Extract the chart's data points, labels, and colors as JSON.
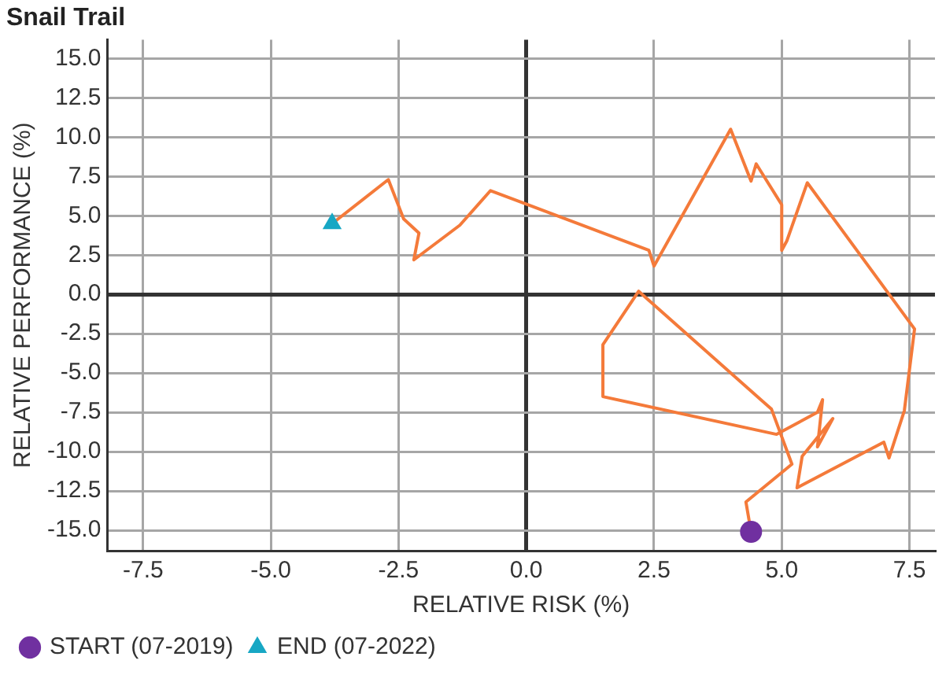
{
  "chart_data": {
    "type": "line",
    "title": "Snail Trail",
    "xlabel": "RELATIVE RISK (%)",
    "ylabel": "RELATIVE PERFORMANCE (%)",
    "xlim": [
      -8.2,
      8.0
    ],
    "ylim": [
      -16.3,
      16.2
    ],
    "xticks": [
      -7.5,
      {
        "value": -5,
        "label": "-5.0"
      },
      -2.5,
      {
        "value": 0,
        "label": "0.0"
      },
      2.5,
      {
        "value": 5,
        "label": "5.0"
      },
      7.5
    ],
    "yticks": [
      {
        "value": 15,
        "label": "15.0"
      },
      12.5,
      {
        "value": 10,
        "label": "10.0"
      },
      7.5,
      {
        "value": 5,
        "label": "5.0"
      },
      2.5,
      {
        "value": 0,
        "label": "0.0"
      },
      -2.5,
      {
        "value": -5,
        "label": "-5.0"
      },
      -7.5,
      {
        "value": -10,
        "label": "-10.0"
      },
      -12.5,
      {
        "value": -15,
        "label": "-15.0"
      }
    ],
    "grid": true,
    "legend": "bottom left",
    "line_style": "solid",
    "series": [
      {
        "color": "#f47a3a",
        "marker": "none",
        "x": [
          4.4,
          4.3,
          5.2,
          4.8,
          2.2,
          1.5,
          1.5,
          4.9,
          5.7,
          5.8,
          5.7,
          6.0,
          5.4,
          5.3,
          7.0,
          7.1,
          7.4,
          7.6,
          5.5,
          5.1,
          5.0,
          5.0,
          4.5,
          4.4,
          4.0,
          2.5,
          2.4,
          -0.7,
          -1.3,
          -2.2,
          -2.1,
          -2.4,
          -2.7,
          -3.8
        ],
        "values": [
          -15.1,
          -13.2,
          -10.8,
          -7.3,
          0.2,
          -3.2,
          -6.5,
          -8.9,
          -7.5,
          -6.7,
          -9.7,
          -7.9,
          -10.3,
          -12.3,
          -9.4,
          -10.4,
          -7.4,
          -2.2,
          7.1,
          3.4,
          2.8,
          5.7,
          8.3,
          7.2,
          10.5,
          1.8,
          2.8,
          6.6,
          4.4,
          2.2,
          3.9,
          4.8,
          7.3,
          4.5
        ]
      },
      {
        "type": "scatter",
        "name": "START (07-2019)",
        "color": "#7030a0",
        "marker": "circle",
        "x": [
          4.4
        ],
        "values": [
          -15.1
        ]
      },
      {
        "type": "scatter",
        "name": "END (07-2022)",
        "color": "#17a7c4",
        "marker": "triangle",
        "x": [
          -3.8
        ],
        "values": [
          4.5
        ]
      }
    ]
  }
}
